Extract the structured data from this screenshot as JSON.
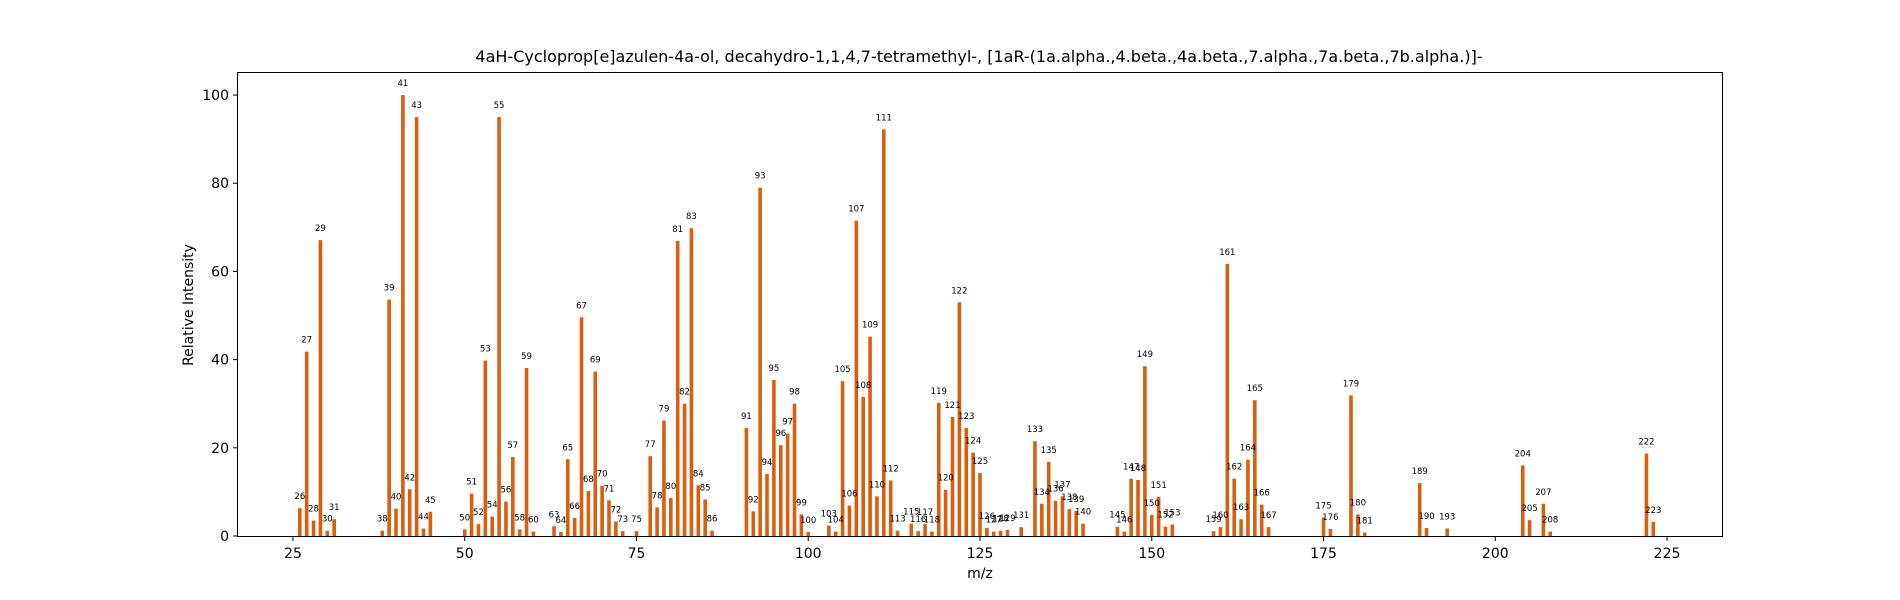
{
  "chart_data": {
    "type": "bar",
    "title": "4aH-Cycloprop[e]azulen-4a-ol, decahydro-1,1,4,7-tetramethyl-, [1aR-(1a.alpha.,4.beta.,4a.beta.,7.alpha.,7a.beta.,7b.alpha.)]-",
    "xlabel": "m/z",
    "ylabel": "Relative Intensity",
    "xlim": [
      17,
      233
    ],
    "ylim": [
      0,
      105
    ],
    "xticks": [
      25,
      50,
      75,
      100,
      125,
      150,
      175,
      200,
      225
    ],
    "yticks": [
      0,
      20,
      40,
      60,
      80,
      100
    ],
    "bar_color": "#d95f0e",
    "grid": false,
    "peaks": [
      [
        26,
        6.3
      ],
      [
        27,
        41.8
      ],
      [
        28,
        3.5
      ],
      [
        29,
        67.1
      ],
      [
        30,
        1.2
      ],
      [
        31,
        3.8
      ],
      [
        38,
        1.2
      ],
      [
        39,
        53.6
      ],
      [
        40,
        6.2
      ],
      [
        41,
        100
      ],
      [
        42,
        10.6
      ],
      [
        43,
        95.0
      ],
      [
        44,
        1.7
      ],
      [
        45,
        5.5
      ],
      [
        50,
        1.5
      ],
      [
        51,
        9.6
      ],
      [
        52,
        2.7
      ],
      [
        53,
        39.8
      ],
      [
        54,
        4.4
      ],
      [
        55,
        95.0
      ],
      [
        56,
        7.8
      ],
      [
        57,
        17.9
      ],
      [
        58,
        1.5
      ],
      [
        59,
        38.1
      ],
      [
        60,
        1.0
      ],
      [
        63,
        2.2
      ],
      [
        64,
        0.9
      ],
      [
        65,
        17.4
      ],
      [
        66,
        4.1
      ],
      [
        67,
        49.6
      ],
      [
        68,
        10.2
      ],
      [
        69,
        37.3
      ],
      [
        70,
        11.4
      ],
      [
        71,
        8.1
      ],
      [
        72,
        3.3
      ],
      [
        73,
        1.1
      ],
      [
        75,
        1.1
      ],
      [
        77,
        18.1
      ],
      [
        78,
        6.5
      ],
      [
        79,
        26.2
      ],
      [
        80,
        8.6
      ],
      [
        81,
        66.9
      ],
      [
        82,
        30.0
      ],
      [
        83,
        69.8
      ],
      [
        84,
        11.5
      ],
      [
        85,
        8.3
      ],
      [
        86,
        1.2
      ],
      [
        91,
        24.5
      ],
      [
        92,
        5.6
      ],
      [
        93,
        79.0
      ],
      [
        94,
        14.1
      ],
      [
        95,
        35.4
      ],
      [
        96,
        20.6
      ],
      [
        97,
        23.2
      ],
      [
        98,
        30.0
      ],
      [
        99,
        4.9
      ],
      [
        100,
        0.9
      ],
      [
        103,
        2.4
      ],
      [
        104,
        1.0
      ],
      [
        105,
        35.1
      ],
      [
        106,
        6.9
      ],
      [
        107,
        71.5
      ],
      [
        108,
        31.5
      ],
      [
        109,
        45.2
      ],
      [
        110,
        9.0
      ],
      [
        111,
        92.2
      ],
      [
        112,
        12.6
      ],
      [
        113,
        1.2
      ],
      [
        115,
        2.8
      ],
      [
        116,
        1.1
      ],
      [
        117,
        2.7
      ],
      [
        118,
        1.0
      ],
      [
        119,
        30.2
      ],
      [
        120,
        10.5
      ],
      [
        121,
        27.0
      ],
      [
        122,
        53.0
      ],
      [
        123,
        24.5
      ],
      [
        124,
        18.9
      ],
      [
        125,
        14.3
      ],
      [
        126,
        1.8
      ],
      [
        127,
        1.0
      ],
      [
        128,
        1.2
      ],
      [
        129,
        1.4
      ],
      [
        131,
        2.0
      ],
      [
        133,
        21.5
      ],
      [
        134,
        7.3
      ],
      [
        135,
        16.8
      ],
      [
        136,
        8.0
      ],
      [
        137,
        9.0
      ],
      [
        138,
        6.1
      ],
      [
        139,
        5.7
      ],
      [
        140,
        2.8
      ],
      [
        145,
        2.1
      ],
      [
        146,
        1.0
      ],
      [
        147,
        13.0
      ],
      [
        148,
        12.7
      ],
      [
        149,
        38.5
      ],
      [
        150,
        4.8
      ],
      [
        151,
        8.9
      ],
      [
        152,
        2.1
      ],
      [
        153,
        2.6
      ],
      [
        159,
        1.1
      ],
      [
        160,
        2.0
      ],
      [
        161,
        61.7
      ],
      [
        162,
        13.0
      ],
      [
        163,
        3.8
      ],
      [
        164,
        17.3
      ],
      [
        165,
        30.8
      ],
      [
        166,
        7.1
      ],
      [
        167,
        2.0
      ],
      [
        175,
        4.2
      ],
      [
        176,
        1.6
      ],
      [
        179,
        31.9
      ],
      [
        180,
        4.9
      ],
      [
        181,
        0.8
      ],
      [
        189,
        12.0
      ],
      [
        190,
        1.8
      ],
      [
        193,
        1.7
      ],
      [
        204,
        16.0
      ],
      [
        205,
        3.6
      ],
      [
        207,
        7.3
      ],
      [
        208,
        1.0
      ],
      [
        222,
        18.7
      ],
      [
        223,
        3.2
      ]
    ]
  }
}
